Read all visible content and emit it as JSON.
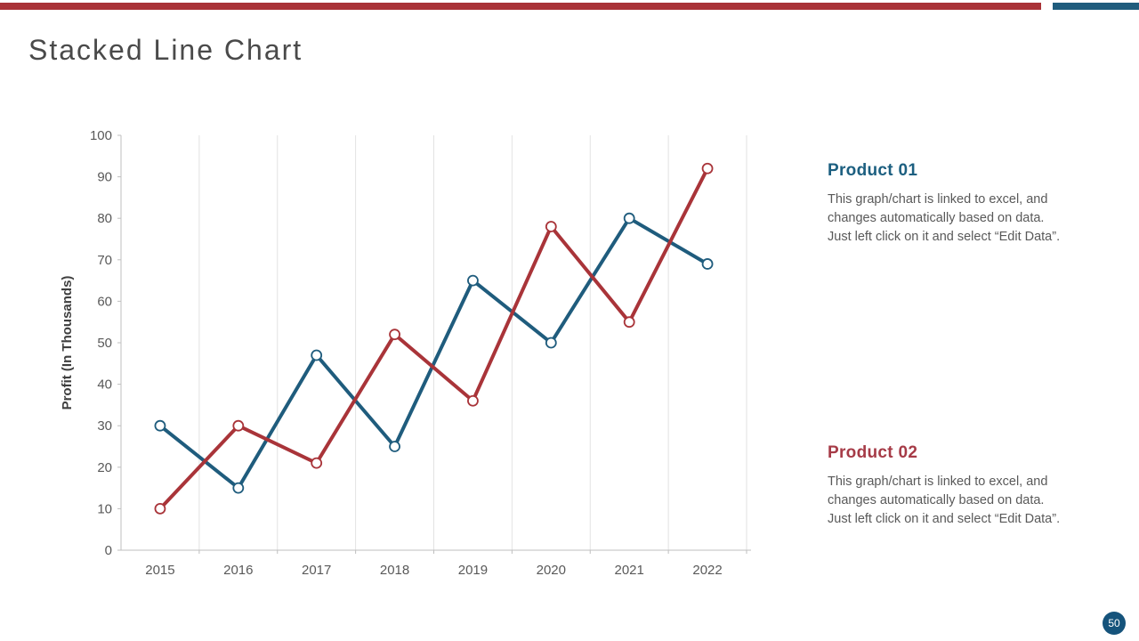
{
  "slide": {
    "title": "Stacked Line Chart",
    "page_number": "50",
    "accent_colors": {
      "top_bar_red": "#A93237",
      "top_bar_blue": "#1F5C7D",
      "badge_blue": "#15537B"
    }
  },
  "chart_data": {
    "type": "line",
    "categories": [
      "2015",
      "2016",
      "2017",
      "2018",
      "2019",
      "2020",
      "2021",
      "2022"
    ],
    "series": [
      {
        "name": "Product 01",
        "color": "#1F5C7D",
        "values": [
          30,
          15,
          47,
          25,
          65,
          50,
          80,
          69
        ]
      },
      {
        "name": "Product 02",
        "color": "#A93439",
        "values": [
          10,
          30,
          21,
          52,
          36,
          78,
          55,
          92
        ]
      }
    ],
    "title": "",
    "xlabel": "",
    "ylabel": "Profit (In Thousands)",
    "ylim": [
      0,
      100
    ],
    "ytick_step": 10,
    "grid": "vertical-only",
    "legend": "none",
    "marker": "open-circle",
    "axis_tick_color": "#595959",
    "gridline_color": "#E2E2E2"
  },
  "panels": [
    {
      "heading": "Product 01",
      "heading_color": "#1C5F80",
      "body": "This graph/chart is linked to excel, and\nchanges automatically based on data.\nJust left click on it and select “Edit Data”."
    },
    {
      "heading": "Product 02",
      "heading_color": "#A63B47",
      "body": "This graph/chart is linked to excel, and\nchanges automatically based on data.\nJust left click on it and select “Edit Data”."
    }
  ]
}
